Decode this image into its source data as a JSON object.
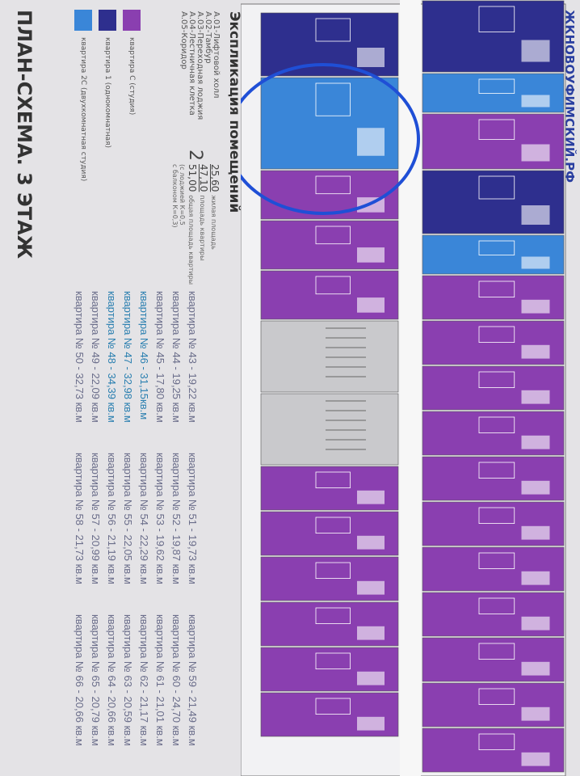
{
  "site": "ЖКНОВОУФИМСКИЙ.РФ",
  "title": "ПЛАН-СХЕМА. 3 ЭТАЖ",
  "colors": {
    "studio": "#8a3fb0",
    "one_room": "#2e2f8e",
    "two_room_studio": "#3a86d8",
    "common": "#c9c9cc",
    "annotation": "#1f4fd6"
  },
  "explication": {
    "heading": "Экспликация помещений",
    "rooms": [
      "А.01-Лифтовой холл",
      "А.02-Тамбур",
      "А.03-Переходная лоджия",
      "А.04-Лестничная клетка",
      "А.05-Коридор"
    ],
    "example": {
      "rooms": "2",
      "living": "25,60",
      "living_label": "жилая площадь",
      "flat": "47,10",
      "flat_label": "площадь квартиры",
      "total": "51,00",
      "total_label": "общая площадь квартиры",
      "note1": "(с лоджией К=0,5",
      "note2": "с балконом К=0,3)"
    },
    "legend": [
      {
        "label": "квартира С (студия)",
        "color": "#8a3fb0"
      },
      {
        "label": "квартира 1 (однокомнатная)",
        "color": "#2e2f8e"
      },
      {
        "label": "квартира 2С (двухкомнатная студия)",
        "color": "#3a86d8"
      }
    ]
  },
  "apartments": [
    [
      "квартира № 43 - 19,22 кв.м",
      "квартира № 44 - 19,25 кв.м",
      "квартира № 45 - 17,80 кв.м",
      "квартира № 46 - 31,15кв.м",
      "квартира № 47 - 32,98 кв.м",
      "квартира № 48 - 34,39 кв.м",
      "квартира № 49 - 22,09 кв.м",
      "квартира № 50 - 32,73 кв.м"
    ],
    [
      "квартира № 51 - 19,73 кв.м",
      "квартира № 52 - 19,87 кв.м",
      "квартира № 53 - 19,62 кв.м",
      "квартира № 54 - 22,29 кв.м",
      "квартира № 55 - 22,05 кв.м",
      "квартира № 56 - 21,19 кв.м",
      "квартира № 57 - 20,99 кв.м",
      "квартира № 58 - 21,73 кв.м"
    ],
    [
      "квартира № 59 - 21,49 кв.м",
      "квартира № 60 - 24,70 кв.м",
      "квартира № 61 - 21,01 кв.м",
      "квартира № 62 - 21,17 кв.м",
      "квартира № 63 - 20,59 кв.м",
      "квартира № 64 - 20,66 кв.м",
      "квартира № 65 - 20,79 кв.м",
      "квартира № 66 - 20,66 кв.м"
    ]
  ],
  "plan": {
    "upper_row": [
      "one_room",
      "two_room_studio",
      "studio",
      "one_room",
      "two_room_studio",
      "studio",
      "studio",
      "studio",
      "studio",
      "studio",
      "studio",
      "studio",
      "studio",
      "studio",
      "studio",
      "studio"
    ],
    "lower_row": [
      "one_room",
      "two_room_studio",
      "studio",
      "studio",
      "studio",
      "common",
      "common",
      "studio",
      "studio",
      "studio",
      "studio",
      "studio",
      "studio"
    ]
  }
}
